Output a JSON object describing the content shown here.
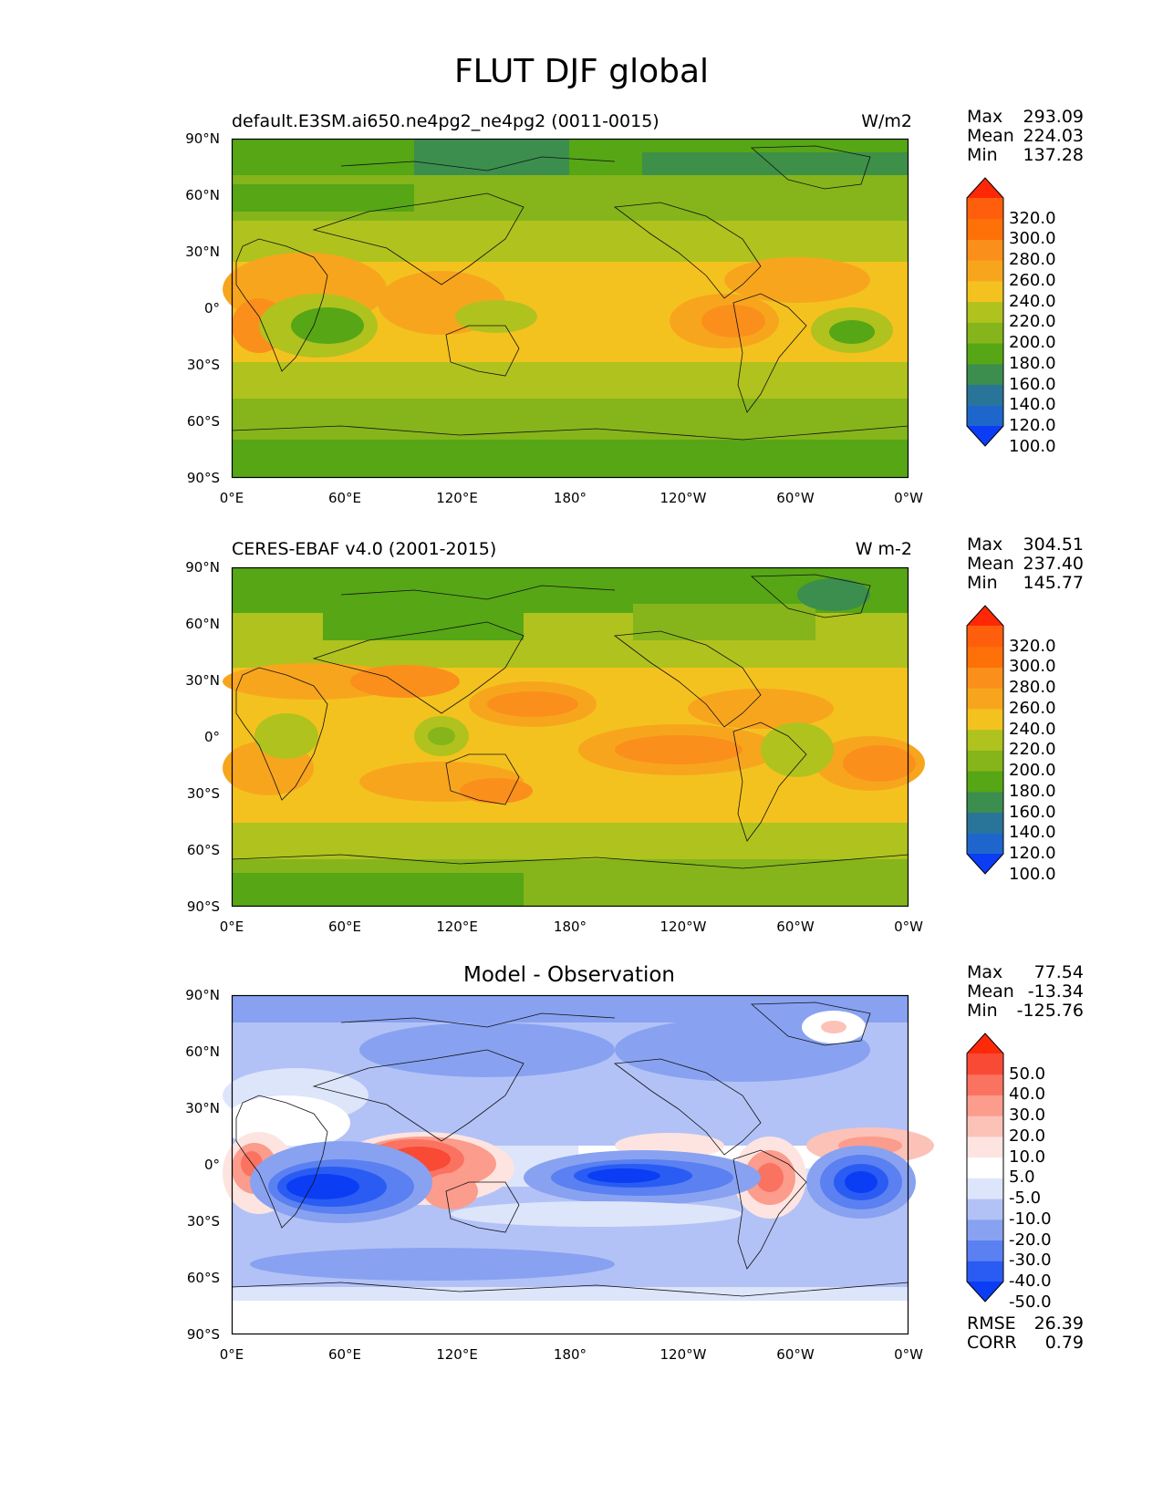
{
  "figure": {
    "title": "FLUT DJF global"
  },
  "axes": {
    "lat_labels": [
      "90°N",
      "60°N",
      "30°N",
      "0°",
      "30°S",
      "60°S",
      "90°S"
    ],
    "lon_labels": [
      "0°E",
      "60°E",
      "120°E",
      "180°",
      "120°W",
      "60°W",
      "0°W"
    ]
  },
  "panels": [
    {
      "left_title": "default.E3SM.ai650.ne4pg2_ne4pg2 (0011-0015)",
      "right_title": "W/m2",
      "stats": [
        {
          "label": "Max",
          "value": "293.09"
        },
        {
          "label": "Mean",
          "value": "224.03"
        },
        {
          "label": "Min",
          "value": "137.28"
        }
      ],
      "colorbar": {
        "colors": [
          "#0b3df5",
          "#1f66cc",
          "#29759a",
          "#3c8e4e",
          "#56a616",
          "#85b51b",
          "#b0c21e",
          "#f4c21f",
          "#f8a51e",
          "#fb8f1c",
          "#fe7008",
          "#ff5f0d",
          "#ff2806"
        ],
        "labels": [
          "320.0",
          "300.0",
          "280.0",
          "260.0",
          "240.0",
          "220.0",
          "200.0",
          "180.0",
          "160.0",
          "140.0",
          "120.0",
          "100.0"
        ]
      }
    },
    {
      "left_title": "CERES-EBAF v4.0 (2001-2015)",
      "right_title": "W m-2",
      "stats": [
        {
          "label": "Max",
          "value": "304.51"
        },
        {
          "label": "Mean",
          "value": "237.40"
        },
        {
          "label": "Min",
          "value": "145.77"
        }
      ],
      "colorbar": {
        "colors": [
          "#0b3df5",
          "#1f66cc",
          "#29759a",
          "#3c8e4e",
          "#56a616",
          "#85b51b",
          "#b0c21e",
          "#f4c21f",
          "#f8a51e",
          "#fb8f1c",
          "#fe7008",
          "#ff5f0d",
          "#ff2806"
        ],
        "labels": [
          "320.0",
          "300.0",
          "280.0",
          "260.0",
          "240.0",
          "220.0",
          "200.0",
          "180.0",
          "160.0",
          "140.0",
          "120.0",
          "100.0"
        ]
      }
    },
    {
      "center_title": "Model - Observation",
      "stats": [
        {
          "label": "Max",
          "value": "77.54"
        },
        {
          "label": "Mean",
          "value": "-13.34"
        },
        {
          "label": "Min",
          "value": "-125.76"
        }
      ],
      "colorbar": {
        "colors": [
          "#0b3df5",
          "#2a5cf3",
          "#5a80f1",
          "#88a2f1",
          "#b3c2f6",
          "#dde5fa",
          "#ffffff",
          "#fde4e0",
          "#fcc2b8",
          "#fb9c8c",
          "#fa7361",
          "#f94a35",
          "#fd2a0a"
        ],
        "labels": [
          "50.0",
          "40.0",
          "30.0",
          "20.0",
          "10.0",
          "5.0",
          "-5.0",
          "-10.0",
          "-20.0",
          "-30.0",
          "-40.0",
          "-50.0"
        ]
      },
      "metrics": [
        {
          "label": "RMSE",
          "value": "26.39"
        },
        {
          "label": "CORR",
          "value": "0.79"
        }
      ]
    }
  ]
}
